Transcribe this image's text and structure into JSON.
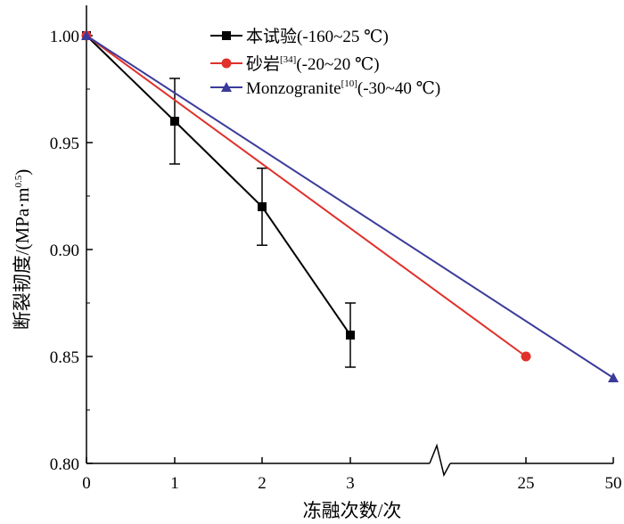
{
  "chart_data": {
    "type": "line",
    "xlabel": "冻融次数/次",
    "ylabel": {
      "main": "断裂韧度/(MPa·m",
      "exponent": "0.5",
      "close": ")"
    },
    "x_ticks": [
      "0",
      "1",
      "2",
      "3",
      "25",
      "50"
    ],
    "axis_break": "between 3 and 25",
    "ylim": [
      0.8,
      1.0
    ],
    "y_ticks": [
      "0.80",
      "0.85",
      "0.90",
      "0.95",
      "1.00"
    ],
    "legend_position": "top",
    "series": [
      {
        "name": "本试验(-160~25 ℃)",
        "legend": {
          "main": "本试验(-160~25 ℃)",
          "ref": "",
          "tail": ""
        },
        "color": "#000000",
        "marker": "square",
        "x": [
          0,
          1,
          2,
          3
        ],
        "y": [
          1.0,
          0.96,
          0.92,
          0.86
        ],
        "error": [
          0,
          0.02,
          0.018,
          0.015
        ]
      },
      {
        "name": "砂岩[34](-20~20 ℃)",
        "legend": {
          "main": "砂岩",
          "ref": "[34]",
          "tail": "(-20~20 ℃)"
        },
        "color": "#e0312b",
        "marker": "circle",
        "x": [
          0,
          25
        ],
        "y": [
          1.0,
          0.85
        ]
      },
      {
        "name": "Monzogranite[10](-30~40 ℃)",
        "legend": {
          "main": "Monzogranite",
          "ref": "[10]",
          "tail": "(-30~40 ℃)"
        },
        "color": "#3b3b9b",
        "marker": "triangle",
        "x": [
          0,
          50
        ],
        "y": [
          1.0,
          0.84
        ]
      }
    ]
  }
}
